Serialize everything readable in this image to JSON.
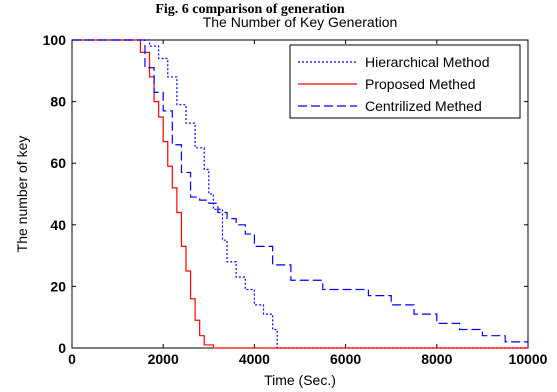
{
  "caption_top": "Fig. 6 comparison of generation",
  "chart_data": {
    "type": "line",
    "title": "The Number of Key Generation",
    "xlabel": "Time (Sec.)",
    "ylabel": "The number of key",
    "xlim": [
      0,
      10000
    ],
    "ylim": [
      0,
      100
    ],
    "xticks": [
      0,
      2000,
      4000,
      6000,
      8000,
      10000
    ],
    "yticks": [
      0,
      20,
      40,
      60,
      80,
      100
    ],
    "grid": false,
    "legend_position": "top-right",
    "series": [
      {
        "name": "Hierarchical Method",
        "color": "#0000ff",
        "style": "dotted",
        "x": [
          0,
          1500,
          1700,
          1900,
          2100,
          2300,
          2500,
          2700,
          2900,
          3000,
          3100,
          3300,
          3400,
          3600,
          3800,
          4000,
          4200,
          4400,
          4500,
          10000
        ],
        "y": [
          100,
          100,
          98,
          94,
          88,
          79,
          73,
          65,
          58,
          50,
          45,
          35,
          28,
          23,
          19,
          14,
          11,
          6,
          0,
          0
        ]
      },
      {
        "name": "Proposed Methed",
        "color": "#ff0000",
        "style": "solid",
        "x": [
          0,
          1300,
          1500,
          1700,
          1800,
          1900,
          2000,
          2100,
          2200,
          2300,
          2400,
          2500,
          2600,
          2700,
          2800,
          2900,
          3100,
          10000
        ],
        "y": [
          100,
          100,
          96,
          88,
          80,
          75,
          67,
          59,
          52,
          44,
          33,
          25,
          16,
          9,
          4,
          1,
          0,
          0
        ]
      },
      {
        "name": "Centrilized Methed",
        "color": "#0000ff",
        "style": "dashed",
        "x": [
          0,
          1400,
          1600,
          1800,
          2000,
          2200,
          2400,
          2600,
          2800,
          3000,
          3200,
          3400,
          3600,
          3800,
          4000,
          4400,
          4800,
          5500,
          6500,
          7000,
          7500,
          8000,
          8500,
          9000,
          9500,
          10000
        ],
        "y": [
          100,
          100,
          91,
          83,
          77,
          66,
          57,
          49,
          48,
          47,
          44,
          42,
          40,
          37,
          33,
          27,
          22,
          19,
          17,
          14,
          11,
          8,
          6,
          4,
          2,
          1
        ]
      }
    ]
  }
}
